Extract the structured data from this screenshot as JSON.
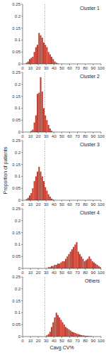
{
  "chart_data": [
    {
      "type": "histogram",
      "title": "Cluster 1",
      "color": "#c0392b",
      "bins": [
        0,
        2,
        4,
        6,
        8,
        10,
        12,
        14,
        16,
        18,
        20,
        22,
        24,
        26,
        28,
        30,
        32,
        34,
        36,
        38,
        40,
        42,
        44,
        46,
        48,
        50,
        52,
        54,
        56,
        58,
        60,
        62,
        64,
        66,
        68,
        70,
        72,
        74,
        76,
        78,
        80,
        82,
        84,
        86,
        88,
        90,
        92,
        94,
        96,
        98,
        100
      ],
      "values": [
        0.0,
        0.0,
        0.005,
        0.01,
        0.02,
        0.025,
        0.03,
        0.05,
        0.07,
        0.08,
        0.13,
        0.12,
        0.11,
        0.09,
        0.08,
        0.07,
        0.05,
        0.04,
        0.03,
        0.02,
        0.01,
        0.005,
        0.002,
        0.0,
        0.0,
        0.0,
        0.0,
        0.0,
        0.0,
        0.0,
        0.0,
        0.0,
        0.0,
        0.0,
        0.0,
        0.0,
        0.0,
        0.0,
        0.0,
        0.0,
        0.0,
        0.0,
        0.0,
        0.0,
        0.0,
        0.0,
        0.0,
        0.0,
        0.0,
        0.0
      ],
      "reference_lines": [
        {
          "x": 28.4,
          "color": "#888888",
          "line_style": "dotted"
        }
      ],
      "xlim": [
        0,
        100
      ],
      "xticks": [
        0,
        10,
        20,
        30,
        40,
        50,
        60,
        70,
        80,
        90,
        100
      ],
      "ylim": [
        0,
        0.25
      ],
      "yticks": [
        0,
        0.05,
        0.1,
        0.15,
        0.2,
        0.25
      ],
      "grid": false
    },
    {
      "type": "histogram",
      "title": "Cluster 2",
      "color": "#c0392b",
      "bins": [
        0,
        2,
        4,
        6,
        8,
        10,
        12,
        14,
        16,
        18,
        20,
        22,
        24,
        26,
        28,
        30,
        32,
        34,
        36,
        38,
        40,
        42,
        44,
        46,
        48,
        50,
        52,
        54,
        56,
        58,
        60,
        62,
        64,
        66,
        68,
        70,
        72,
        74,
        76,
        78,
        80,
        82,
        84,
        86,
        88,
        90,
        92,
        94,
        96,
        98,
        100
      ],
      "values": [
        0.0,
        0.0,
        0.0,
        0.0,
        0.0,
        0.005,
        0.01,
        0.04,
        0.07,
        0.16,
        0.165,
        0.23,
        0.17,
        0.1,
        0.07,
        0.05,
        0.03,
        0.015,
        0.005,
        0.0,
        0.0,
        0.0,
        0.0,
        0.0,
        0.0,
        0.0,
        0.0,
        0.0,
        0.0,
        0.0,
        0.0,
        0.0,
        0.0,
        0.0,
        0.0,
        0.0,
        0.0,
        0.0,
        0.0,
        0.0,
        0.0,
        0.0,
        0.0,
        0.0,
        0.0,
        0.0,
        0.0,
        0.0,
        0.0,
        0.0
      ],
      "reference_lines": [
        {
          "x": 28.4,
          "color": "#888888",
          "line_style": "dotted"
        }
      ],
      "xlim": [
        0,
        100
      ],
      "xticks": [
        0,
        10,
        20,
        30,
        40,
        50,
        60,
        70,
        80,
        90,
        100
      ],
      "ylim": [
        0,
        0.25
      ],
      "yticks": [
        0,
        0.05,
        0.1,
        0.15,
        0.2,
        0.25
      ],
      "grid": false
    },
    {
      "type": "histogram",
      "title": "Cluster 3",
      "color": "#c0392b",
      "ylabel": "Proportion of patients",
      "bins": [
        0,
        2,
        4,
        6,
        8,
        10,
        12,
        14,
        16,
        18,
        20,
        22,
        24,
        26,
        28,
        30,
        32,
        34,
        36,
        38,
        40,
        42,
        44,
        46,
        48,
        50,
        52,
        54,
        56,
        58,
        60,
        62,
        64,
        66,
        68,
        70,
        72,
        74,
        76,
        78,
        80,
        82,
        84,
        86,
        88,
        90,
        92,
        94,
        96,
        98,
        100
      ],
      "values": [
        0.0,
        0.0,
        0.005,
        0.01,
        0.02,
        0.03,
        0.05,
        0.08,
        0.1,
        0.12,
        0.14,
        0.12,
        0.1,
        0.08,
        0.055,
        0.04,
        0.025,
        0.015,
        0.007,
        0.003,
        0.0,
        0.0,
        0.0,
        0.0,
        0.0,
        0.0,
        0.0,
        0.0,
        0.0,
        0.0,
        0.0,
        0.0,
        0.0,
        0.0,
        0.0,
        0.0,
        0.0,
        0.0,
        0.0,
        0.0,
        0.0,
        0.0,
        0.0,
        0.0,
        0.0,
        0.0,
        0.0,
        0.0,
        0.0,
        0.0
      ],
      "reference_lines": [
        {
          "x": 28.4,
          "color": "#888888",
          "line_style": "dotted"
        }
      ],
      "xlim": [
        0,
        100
      ],
      "xticks": [
        0,
        10,
        20,
        30,
        40,
        50,
        60,
        70,
        80,
        90,
        100
      ],
      "ylim": [
        0,
        0.25
      ],
      "yticks": [
        0,
        0.05,
        0.1,
        0.15,
        0.2,
        0.25
      ],
      "grid": false
    },
    {
      "type": "histogram",
      "title": "Cluster 4",
      "color": "#c0392b",
      "bins": [
        0,
        2,
        4,
        6,
        8,
        10,
        12,
        14,
        16,
        18,
        20,
        22,
        24,
        26,
        28,
        30,
        32,
        34,
        36,
        38,
        40,
        42,
        44,
        46,
        48,
        50,
        52,
        54,
        56,
        58,
        60,
        62,
        64,
        66,
        68,
        70,
        72,
        74,
        76,
        78,
        80,
        82,
        84,
        86,
        88,
        90,
        92,
        94,
        96,
        98,
        100
      ],
      "values": [
        0.0,
        0.0,
        0.0,
        0.0,
        0.0,
        0.0,
        0.0,
        0.0,
        0.0,
        0.0,
        0.0,
        0.0,
        0.0,
        0.0,
        0.0,
        0.0,
        0.005,
        0.005,
        0.01,
        0.01,
        0.015,
        0.015,
        0.02,
        0.02,
        0.025,
        0.03,
        0.03,
        0.04,
        0.05,
        0.06,
        0.07,
        0.08,
        0.09,
        0.1,
        0.11,
        0.07,
        0.06,
        0.05,
        0.04,
        0.03,
        0.035,
        0.04,
        0.05,
        0.04,
        0.03,
        0.025,
        0.02,
        0.015,
        0.01,
        0.005
      ],
      "reference_lines": [
        {
          "x": 28.4,
          "color": "#888888",
          "line_style": "dotted"
        }
      ],
      "xlim": [
        0,
        100
      ],
      "xticks": [
        0,
        10,
        20,
        30,
        40,
        50,
        60,
        70,
        80,
        90,
        100
      ],
      "ylim": [
        0,
        0.25
      ],
      "yticks": [
        0,
        0.05,
        0.1,
        0.15,
        0.2,
        0.25
      ],
      "grid": false
    },
    {
      "type": "histogram",
      "title": "Others",
      "color": "#c0392b",
      "xlabel": "Cavg CV%",
      "bins": [
        0,
        2,
        4,
        6,
        8,
        10,
        12,
        14,
        16,
        18,
        20,
        22,
        24,
        26,
        28,
        30,
        32,
        34,
        36,
        38,
        40,
        42,
        44,
        46,
        48,
        50,
        52,
        54,
        56,
        58,
        60,
        62,
        64,
        66,
        68,
        70,
        72,
        74,
        76,
        78,
        80,
        82,
        84,
        86,
        88,
        90,
        92,
        94,
        96,
        98,
        100
      ],
      "values": [
        0.0,
        0.0,
        0.0,
        0.0,
        0.0,
        0.0,
        0.0,
        0.0,
        0.0,
        0.0,
        0.0,
        0.0,
        0.0,
        0.0,
        0.0,
        0.005,
        0.01,
        0.02,
        0.04,
        0.06,
        0.08,
        0.1,
        0.09,
        0.08,
        0.07,
        0.06,
        0.05,
        0.04,
        0.035,
        0.03,
        0.025,
        0.02,
        0.018,
        0.015,
        0.012,
        0.01,
        0.008,
        0.006,
        0.005,
        0.004,
        0.003,
        0.003,
        0.002,
        0.002,
        0.0,
        0.0,
        0.0,
        0.0,
        0.0,
        0.0
      ],
      "reference_lines": [
        {
          "x": 28.4,
          "color": "#888888",
          "line_style": "dotted"
        }
      ],
      "xlim": [
        0,
        100
      ],
      "xticks": [
        0,
        10,
        20,
        30,
        40,
        50,
        60,
        70,
        80,
        90,
        100
      ],
      "ylim": [
        0,
        0.25
      ],
      "yticks": [
        0,
        0.05,
        0.1,
        0.15,
        0.2,
        0.25
      ],
      "grid": false
    }
  ]
}
